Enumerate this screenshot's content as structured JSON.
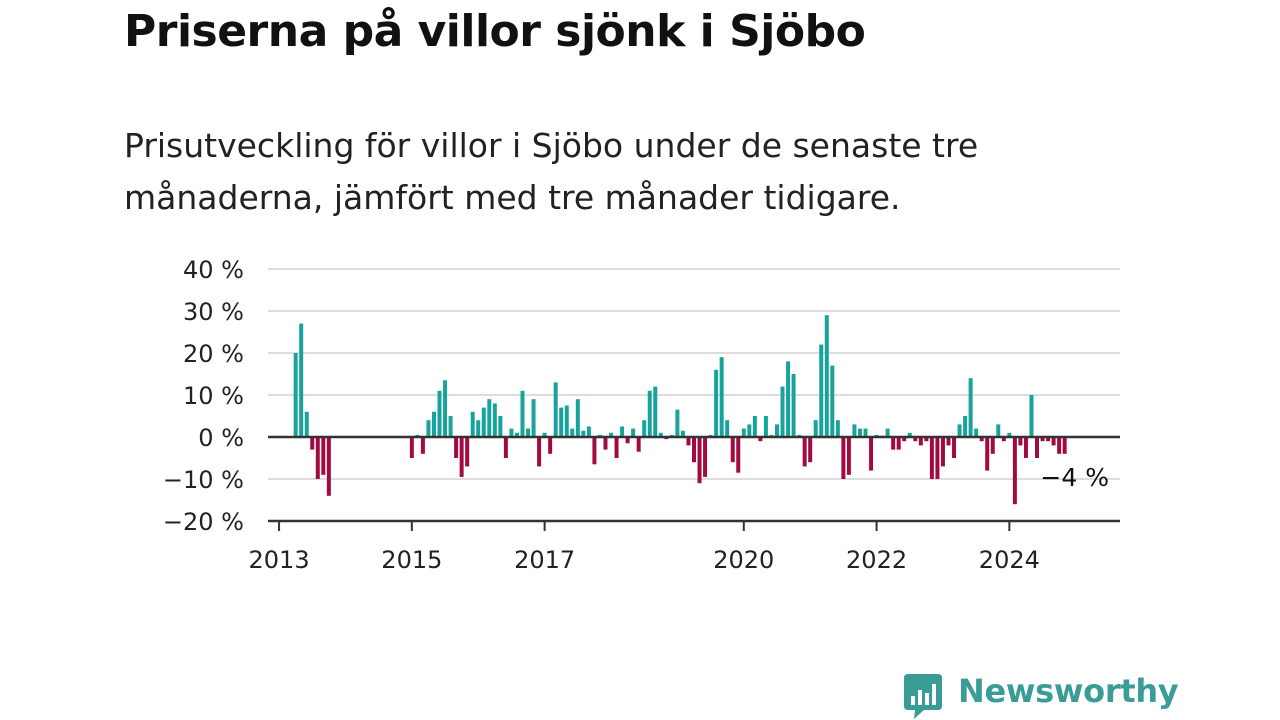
{
  "title": "Priserna på villor sjönk i Sjöbo",
  "subtitle": "Prisutveckling för villor i Sjöbo under de senaste tre månaderna, jämfört med tre månader tidigare.",
  "brand": {
    "name": "Newsworthy",
    "color": "#3a9c96",
    "icon": "bar-chart-bubble-icon"
  },
  "colors": {
    "positive": "#16a39b",
    "negative": "#a3093f",
    "grid": "#dddddd",
    "axis": "#333333"
  },
  "last_value_label": "−4 %",
  "chart_data": {
    "type": "bar",
    "title": "Priserna på villor sjönk i Sjöbo",
    "subtitle": "Prisutveckling för villor i Sjöbo under de senaste tre månaderna, jämfört med tre månader tidigare.",
    "xlabel": "",
    "ylabel": "",
    "y_unit": "%",
    "ylim": [
      -20,
      40
    ],
    "y_ticks": [
      {
        "value": 40,
        "label": "40 %"
      },
      {
        "value": 30,
        "label": "30 %"
      },
      {
        "value": 20,
        "label": "20 %"
      },
      {
        "value": 10,
        "label": "10 %"
      },
      {
        "value": 0,
        "label": "0 %"
      },
      {
        "value": -10,
        "label": "−10 %"
      },
      {
        "value": -20,
        "label": "−20 %"
      }
    ],
    "x_start": "2012-11",
    "x_end": "2025-09",
    "x_ticks": [
      {
        "date": "2013-01",
        "label": "2013"
      },
      {
        "date": "2015-01",
        "label": "2015"
      },
      {
        "date": "2017-01",
        "label": "2017"
      },
      {
        "date": "2020-01",
        "label": "2020"
      },
      {
        "date": "2022-01",
        "label": "2022"
      },
      {
        "date": "2024-01",
        "label": "2024"
      }
    ],
    "grid": true,
    "bars": [
      {
        "date": "2013-04",
        "value": 20
      },
      {
        "date": "2013-05",
        "value": 27
      },
      {
        "date": "2013-06",
        "value": 6
      },
      {
        "date": "2013-07",
        "value": -3
      },
      {
        "date": "2013-08",
        "value": -10
      },
      {
        "date": "2013-09",
        "value": -9
      },
      {
        "date": "2013-10",
        "value": -14
      },
      {
        "date": "2015-01",
        "value": -5
      },
      {
        "date": "2015-02",
        "value": 0.5
      },
      {
        "date": "2015-03",
        "value": -4
      },
      {
        "date": "2015-04",
        "value": 4
      },
      {
        "date": "2015-05",
        "value": 6
      },
      {
        "date": "2015-06",
        "value": 11
      },
      {
        "date": "2015-07",
        "value": 13.5
      },
      {
        "date": "2015-08",
        "value": 5
      },
      {
        "date": "2015-09",
        "value": -5
      },
      {
        "date": "2015-10",
        "value": -9.5
      },
      {
        "date": "2015-11",
        "value": -7
      },
      {
        "date": "2015-12",
        "value": 6
      },
      {
        "date": "2016-01",
        "value": 4
      },
      {
        "date": "2016-02",
        "value": 7
      },
      {
        "date": "2016-03",
        "value": 9
      },
      {
        "date": "2016-04",
        "value": 8
      },
      {
        "date": "2016-05",
        "value": 5
      },
      {
        "date": "2016-06",
        "value": -5
      },
      {
        "date": "2016-07",
        "value": 2
      },
      {
        "date": "2016-08",
        "value": 1
      },
      {
        "date": "2016-09",
        "value": 11
      },
      {
        "date": "2016-10",
        "value": 2
      },
      {
        "date": "2016-11",
        "value": 9
      },
      {
        "date": "2016-12",
        "value": -7
      },
      {
        "date": "2017-01",
        "value": 1
      },
      {
        "date": "2017-02",
        "value": -4
      },
      {
        "date": "2017-03",
        "value": 13
      },
      {
        "date": "2017-04",
        "value": 7
      },
      {
        "date": "2017-05",
        "value": 7.5
      },
      {
        "date": "2017-06",
        "value": 2
      },
      {
        "date": "2017-07",
        "value": 9
      },
      {
        "date": "2017-08",
        "value": 1.5
      },
      {
        "date": "2017-09",
        "value": 2.5
      },
      {
        "date": "2017-10",
        "value": -6.5
      },
      {
        "date": "2017-11",
        "value": 0.5
      },
      {
        "date": "2017-12",
        "value": -3
      },
      {
        "date": "2018-01",
        "value": 1
      },
      {
        "date": "2018-02",
        "value": -5
      },
      {
        "date": "2018-03",
        "value": 2.5
      },
      {
        "date": "2018-04",
        "value": -1.5
      },
      {
        "date": "2018-05",
        "value": 2
      },
      {
        "date": "2018-06",
        "value": -3.5
      },
      {
        "date": "2018-07",
        "value": 4
      },
      {
        "date": "2018-08",
        "value": 11
      },
      {
        "date": "2018-09",
        "value": 12
      },
      {
        "date": "2018-10",
        "value": 1
      },
      {
        "date": "2018-11",
        "value": -0.5
      },
      {
        "date": "2018-12",
        "value": 0.5
      },
      {
        "date": "2019-01",
        "value": 6.5
      },
      {
        "date": "2019-02",
        "value": 1.5
      },
      {
        "date": "2019-03",
        "value": -2
      },
      {
        "date": "2019-04",
        "value": -6
      },
      {
        "date": "2019-05",
        "value": -11
      },
      {
        "date": "2019-06",
        "value": -9.5
      },
      {
        "date": "2019-07",
        "value": 0.5
      },
      {
        "date": "2019-08",
        "value": 16
      },
      {
        "date": "2019-09",
        "value": 19
      },
      {
        "date": "2019-10",
        "value": 4
      },
      {
        "date": "2019-11",
        "value": -6
      },
      {
        "date": "2019-12",
        "value": -8.5
      },
      {
        "date": "2020-01",
        "value": 2
      },
      {
        "date": "2020-02",
        "value": 3
      },
      {
        "date": "2020-03",
        "value": 5
      },
      {
        "date": "2020-04",
        "value": -1
      },
      {
        "date": "2020-05",
        "value": 5
      },
      {
        "date": "2020-06",
        "value": 0.5
      },
      {
        "date": "2020-07",
        "value": 3
      },
      {
        "date": "2020-08",
        "value": 12
      },
      {
        "date": "2020-09",
        "value": 18
      },
      {
        "date": "2020-10",
        "value": 15
      },
      {
        "date": "2020-11",
        "value": 0.5
      },
      {
        "date": "2020-12",
        "value": -7
      },
      {
        "date": "2021-01",
        "value": -6
      },
      {
        "date": "2021-02",
        "value": 4
      },
      {
        "date": "2021-03",
        "value": 22
      },
      {
        "date": "2021-04",
        "value": 29
      },
      {
        "date": "2021-05",
        "value": 17
      },
      {
        "date": "2021-06",
        "value": 4
      },
      {
        "date": "2021-07",
        "value": -10
      },
      {
        "date": "2021-08",
        "value": -9
      },
      {
        "date": "2021-09",
        "value": 3
      },
      {
        "date": "2021-10",
        "value": 2
      },
      {
        "date": "2021-11",
        "value": 2
      },
      {
        "date": "2021-12",
        "value": -8
      },
      {
        "date": "2022-01",
        "value": 0.5
      },
      {
        "date": "2022-02",
        "value": 0.3
      },
      {
        "date": "2022-03",
        "value": 2
      },
      {
        "date": "2022-04",
        "value": -3
      },
      {
        "date": "2022-05",
        "value": -3
      },
      {
        "date": "2022-06",
        "value": -1
      },
      {
        "date": "2022-07",
        "value": 1
      },
      {
        "date": "2022-08",
        "value": -1
      },
      {
        "date": "2022-09",
        "value": -2
      },
      {
        "date": "2022-10",
        "value": -1
      },
      {
        "date": "2022-11",
        "value": -10
      },
      {
        "date": "2022-12",
        "value": -10
      },
      {
        "date": "2023-01",
        "value": -7
      },
      {
        "date": "2023-02",
        "value": -2
      },
      {
        "date": "2023-03",
        "value": -5
      },
      {
        "date": "2023-04",
        "value": 3
      },
      {
        "date": "2023-05",
        "value": 5
      },
      {
        "date": "2023-06",
        "value": 14
      },
      {
        "date": "2023-07",
        "value": 2
      },
      {
        "date": "2023-08",
        "value": -1
      },
      {
        "date": "2023-09",
        "value": -8
      },
      {
        "date": "2023-10",
        "value": -4
      },
      {
        "date": "2023-11",
        "value": 3
      },
      {
        "date": "2023-12",
        "value": -1
      },
      {
        "date": "2024-01",
        "value": 1
      },
      {
        "date": "2024-02",
        "value": -16
      },
      {
        "date": "2024-03",
        "value": -2
      },
      {
        "date": "2024-04",
        "value": -5
      },
      {
        "date": "2024-05",
        "value": 10
      },
      {
        "date": "2024-06",
        "value": -5
      },
      {
        "date": "2024-07",
        "value": -1
      },
      {
        "date": "2024-08",
        "value": -1
      },
      {
        "date": "2024-09",
        "value": -2
      },
      {
        "date": "2024-10",
        "value": -4
      },
      {
        "date": "2024-11",
        "value": -4
      }
    ]
  }
}
